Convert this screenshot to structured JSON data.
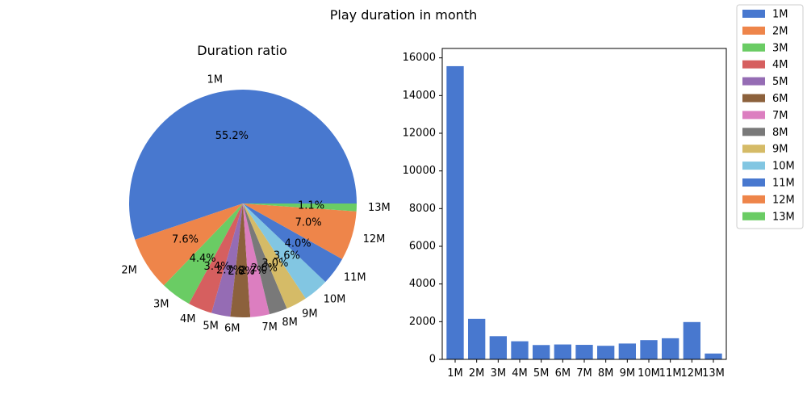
{
  "figure": {
    "title": "Play duration in month"
  },
  "chart_data": [
    {
      "type": "pie",
      "title": "Duration ratio",
      "categories": [
        "1M",
        "2M",
        "3M",
        "4M",
        "5M",
        "6M",
        "7M",
        "8M",
        "9M",
        "10M",
        "11M",
        "12M",
        "13M"
      ],
      "values": [
        15560,
        2150,
        1230,
        960,
        760,
        790,
        770,
        720,
        840,
        1020,
        1120,
        1980,
        310
      ],
      "percent_labels": [
        "55.2%",
        "7.6%",
        "4.4%",
        "3.4%",
        "2.7%",
        "2.8%",
        "2.7%",
        "2.6%",
        "3.0%",
        "3.6%",
        "4.0%",
        "7.0%",
        "1.1%"
      ],
      "colors": [
        "#4878cf",
        "#ee854a",
        "#6acc64",
        "#d65f5f",
        "#956cb4",
        "#8c613c",
        "#dc7ec0",
        "#797979",
        "#d5bb67",
        "#82c6e2",
        "#4878cf",
        "#ee854a",
        "#6acc64"
      ],
      "start_angle_deg": 0,
      "direction": "counterclockwise"
    },
    {
      "type": "bar",
      "title": "",
      "categories": [
        "1M",
        "2M",
        "3M",
        "4M",
        "5M",
        "6M",
        "7M",
        "8M",
        "9M",
        "10M",
        "11M",
        "12M",
        "13M"
      ],
      "values": [
        15560,
        2150,
        1230,
        960,
        760,
        790,
        770,
        720,
        840,
        1020,
        1120,
        1980,
        310
      ],
      "colors": [
        "#4878cf",
        "#4878cf",
        "#4878cf",
        "#4878cf",
        "#4878cf",
        "#4878cf",
        "#4878cf",
        "#4878cf",
        "#4878cf",
        "#4878cf",
        "#4878cf",
        "#4878cf",
        "#4878cf"
      ],
      "ylim": [
        0,
        16500
      ],
      "yticks": [
        0,
        2000,
        4000,
        6000,
        8000,
        10000,
        12000,
        14000,
        16000
      ],
      "grid": false
    }
  ],
  "legend": {
    "placement": "top-right",
    "items": [
      {
        "label": "1M",
        "color": "#4878cf"
      },
      {
        "label": "2M",
        "color": "#ee854a"
      },
      {
        "label": "3M",
        "color": "#6acc64"
      },
      {
        "label": "4M",
        "color": "#d65f5f"
      },
      {
        "label": "5M",
        "color": "#956cb4"
      },
      {
        "label": "6M",
        "color": "#8c613c"
      },
      {
        "label": "7M",
        "color": "#dc7ec0"
      },
      {
        "label": "8M",
        "color": "#797979"
      },
      {
        "label": "9M",
        "color": "#d5bb67"
      },
      {
        "label": "10M",
        "color": "#82c6e2"
      },
      {
        "label": "11M",
        "color": "#4878cf"
      },
      {
        "label": "12M",
        "color": "#ee854a"
      },
      {
        "label": "13M",
        "color": "#6acc64"
      }
    ]
  }
}
